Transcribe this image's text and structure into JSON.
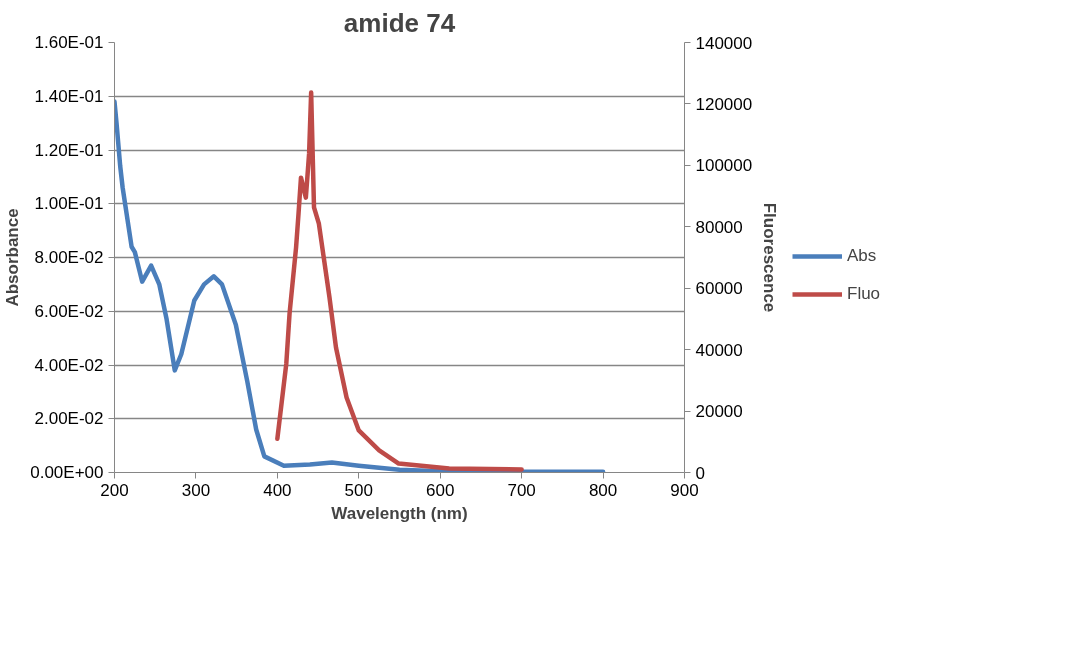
{
  "chart_data": {
    "type": "line",
    "title": "amide 74",
    "xlabel": "Wavelength (nm)",
    "ylabel": "Absorbance",
    "y2label": "Fluorescence",
    "xlim": [
      200,
      900
    ],
    "xticks": [
      200,
      300,
      400,
      500,
      600,
      700,
      800,
      900
    ],
    "ylim": [
      0,
      0.16
    ],
    "yticks": [
      {
        "value": 0,
        "label": "0.00E+00"
      },
      {
        "value": 0.02,
        "label": "2.00E-02"
      },
      {
        "value": 0.04,
        "label": "4.00E-02"
      },
      {
        "value": 0.06,
        "label": "6.00E-02"
      },
      {
        "value": 0.08,
        "label": "8.00E-02"
      },
      {
        "value": 0.1,
        "label": "1.00E-01"
      },
      {
        "value": 0.12,
        "label": "1.20E-01"
      },
      {
        "value": 0.14,
        "label": "1.40E-01"
      },
      {
        "value": 0.16,
        "label": "1.60E-01"
      }
    ],
    "y2lim": [
      0,
      140000
    ],
    "y2ticks": [
      0,
      20000,
      40000,
      60000,
      80000,
      100000,
      120000,
      140000
    ],
    "grid": "y",
    "legend": "right",
    "marker": "none",
    "line_style": "solid",
    "series": [
      {
        "name": "Abs",
        "color": "#4a7ebb",
        "x": [
          200,
          202.5,
          207,
          210,
          221,
          225,
          234,
          245,
          255,
          264,
          274,
          282,
          298,
          310,
          322,
          332,
          349,
          363,
          374,
          384,
          408,
          440,
          467,
          500,
          550,
          600,
          700,
          800
        ],
        "values": [
          0.138,
          0.13,
          0.114,
          0.106,
          0.084,
          0.082,
          0.071,
          0.077,
          0.07,
          0.057,
          0.038,
          0.044,
          0.064,
          0.07,
          0.073,
          0.07,
          0.055,
          0.034,
          0.016,
          0.006,
          0.0025,
          0.003,
          0.0037,
          0.0025,
          0.001,
          0.0005,
          0.0003,
          0.0003
        ]
      },
      {
        "name": "Fluo",
        "color": "#be4b48",
        "axis": "y2",
        "x": [
          400,
          411,
          415,
          423,
          426,
          429,
          435,
          439,
          441.5,
          445,
          451,
          464,
          472,
          485,
          500,
          525,
          549,
          611,
          700
        ],
        "values": [
          11000,
          35500,
          51800,
          73300,
          84300,
          96000,
          89500,
          103900,
          123700,
          86300,
          81000,
          57000,
          40700,
          24400,
          13700,
          7200,
          2900,
          1300,
          1000
        ]
      }
    ]
  }
}
